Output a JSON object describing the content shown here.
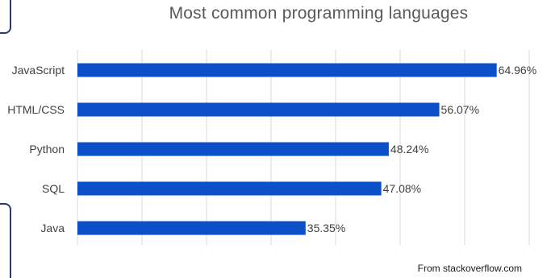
{
  "chart_data": {
    "type": "bar",
    "orientation": "horizontal",
    "title": "Most common programming languages",
    "categories": [
      "JavaScript",
      "HTML/CSS",
      "Python",
      "SQL",
      "Java"
    ],
    "values": [
      64.96,
      56.07,
      48.24,
      47.08,
      35.35
    ],
    "value_labels": [
      "64.96%",
      "56.07%",
      "48.24%",
      "47.08%",
      "35.35%"
    ],
    "xlim": [
      0,
      70
    ],
    "grid": true,
    "bar_color": "#0b4fc9",
    "gridline_color": "#d9d9d9",
    "xlabel": "",
    "ylabel": ""
  },
  "source_note": "From stackoverflow.com"
}
